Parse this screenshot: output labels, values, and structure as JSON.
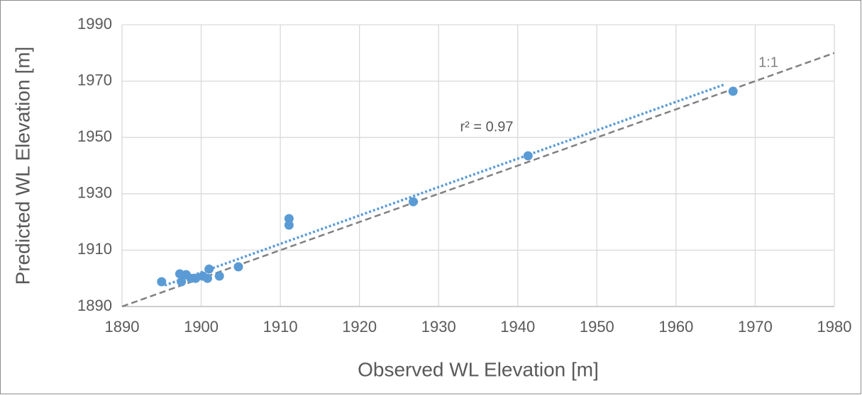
{
  "chart_data": {
    "type": "scatter",
    "x_label": "Observed WL Elevation [m]",
    "y_label": "Predicted WL Elevation [m]",
    "x": [
      1895.0,
      1897.3,
      1897.5,
      1898.1,
      1898.7,
      1899.3,
      1900.2,
      1900.8,
      1901.0,
      1902.3,
      1904.7,
      1911.1,
      1911.1,
      1926.8,
      1941.3,
      1967.2
    ],
    "y": [
      1898.8,
      1901.6,
      1898.8,
      1901.3,
      1900.0,
      1900.0,
      1900.8,
      1900.0,
      1903.3,
      1900.8,
      1904.1,
      1921.2,
      1918.9,
      1927.2,
      1943.5,
      1966.4
    ],
    "color": "#5b9bd5",
    "trendline": {
      "label": "r² = 0.97",
      "x": [
        1895.4,
        1966.2
      ],
      "y": [
        1897.5,
        1968.9
      ],
      "color": "#5b9bd5"
    },
    "reference_line": {
      "label": "1:1",
      "x": [
        1890,
        1980
      ],
      "y": [
        1890,
        1980
      ],
      "color": "#808080"
    },
    "xlim": [
      1890,
      1980
    ],
    "ylim": [
      1890,
      1990
    ],
    "xticks": [
      1890,
      1900,
      1910,
      1920,
      1930,
      1940,
      1950,
      1960,
      1970,
      1980
    ],
    "yticks": [
      1890,
      1910,
      1930,
      1950,
      1970,
      1990
    ],
    "grid": true
  }
}
